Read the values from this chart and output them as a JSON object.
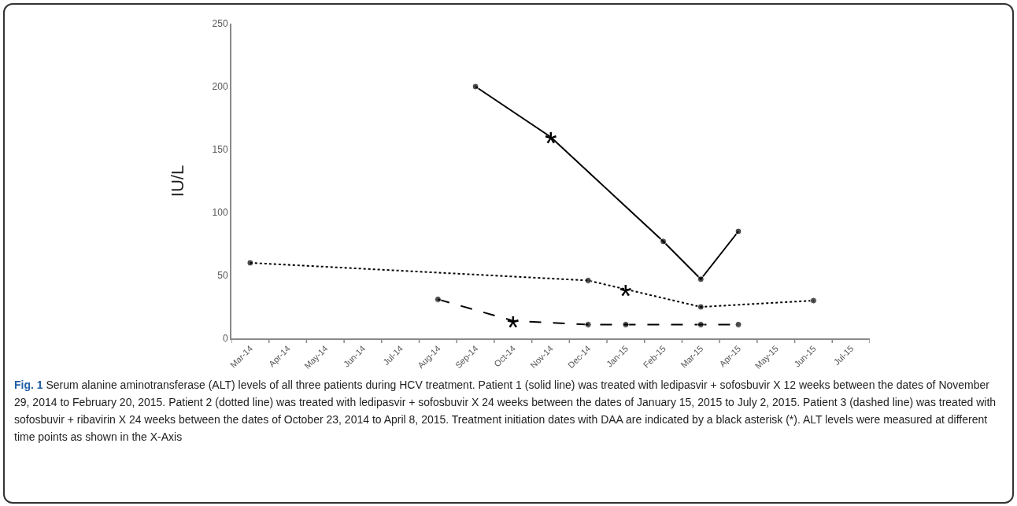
{
  "chart_data": {
    "type": "line",
    "ylabel": "IU/L",
    "categories": [
      "Mar-14",
      "Apr-14",
      "May-14",
      "Jun-14",
      "Jul-14",
      "Aug-14",
      "Sep-14",
      "Oct-14",
      "Nov-14",
      "Dec-14",
      "Jan-15",
      "Feb-15",
      "Mar-15",
      "Apr-15",
      "May-15",
      "Jun-15",
      "Jul-15"
    ],
    "series": [
      {
        "color": "#000000",
        "line_style": "solid",
        "values": [
          null,
          null,
          null,
          null,
          null,
          null,
          200,
          null,
          160,
          null,
          null,
          77,
          47,
          85,
          null,
          null,
          null
        ]
      },
      {
        "color": "#000000",
        "line_style": "dotted",
        "values": [
          60,
          null,
          null,
          null,
          null,
          null,
          null,
          null,
          null,
          46,
          39,
          null,
          25,
          null,
          null,
          30,
          null
        ]
      },
      {
        "color": "#000000",
        "line_style": "dashed",
        "values": [
          null,
          null,
          null,
          null,
          null,
          31,
          null,
          14,
          null,
          11,
          11,
          null,
          11,
          11,
          null,
          null,
          null
        ]
      }
    ],
    "ylim": [
      0,
      250
    ],
    "yticks": [
      0,
      50,
      100,
      150,
      200,
      250
    ],
    "grid": false,
    "marker": "circle",
    "annotations": [
      {
        "text": "*",
        "x": "Nov-14",
        "y": 160
      },
      {
        "text": "*",
        "x": "Jan-15",
        "y": 39
      },
      {
        "text": "*",
        "x": "Oct-14",
        "y": 14
      },
      "Fig. 1",
      "Serum alanine aminotransferase (ALT) levels of all three patients during HCV treatment. Patient 1 (solid line) was treated with ledipasvir + sofosbuvir X 12 weeks between the dates of November 29, 2014 to February 20, 2015. Patient 2 (dotted line) was treated with ledipasvir + sofosbuvir X 24 weeks between the dates of January 15, 2015 to July 2, 2015. Patient 3 (dashed line) was treated with sofosbuvir + ribavirin X 24 weeks between the dates of October 23, 2014 to April 8, 2015. Treatment initiation dates with DAA are indicated by a black asterisk (*). ALT levels were measured at different time points as shown in the X-Axis"
    ]
  }
}
